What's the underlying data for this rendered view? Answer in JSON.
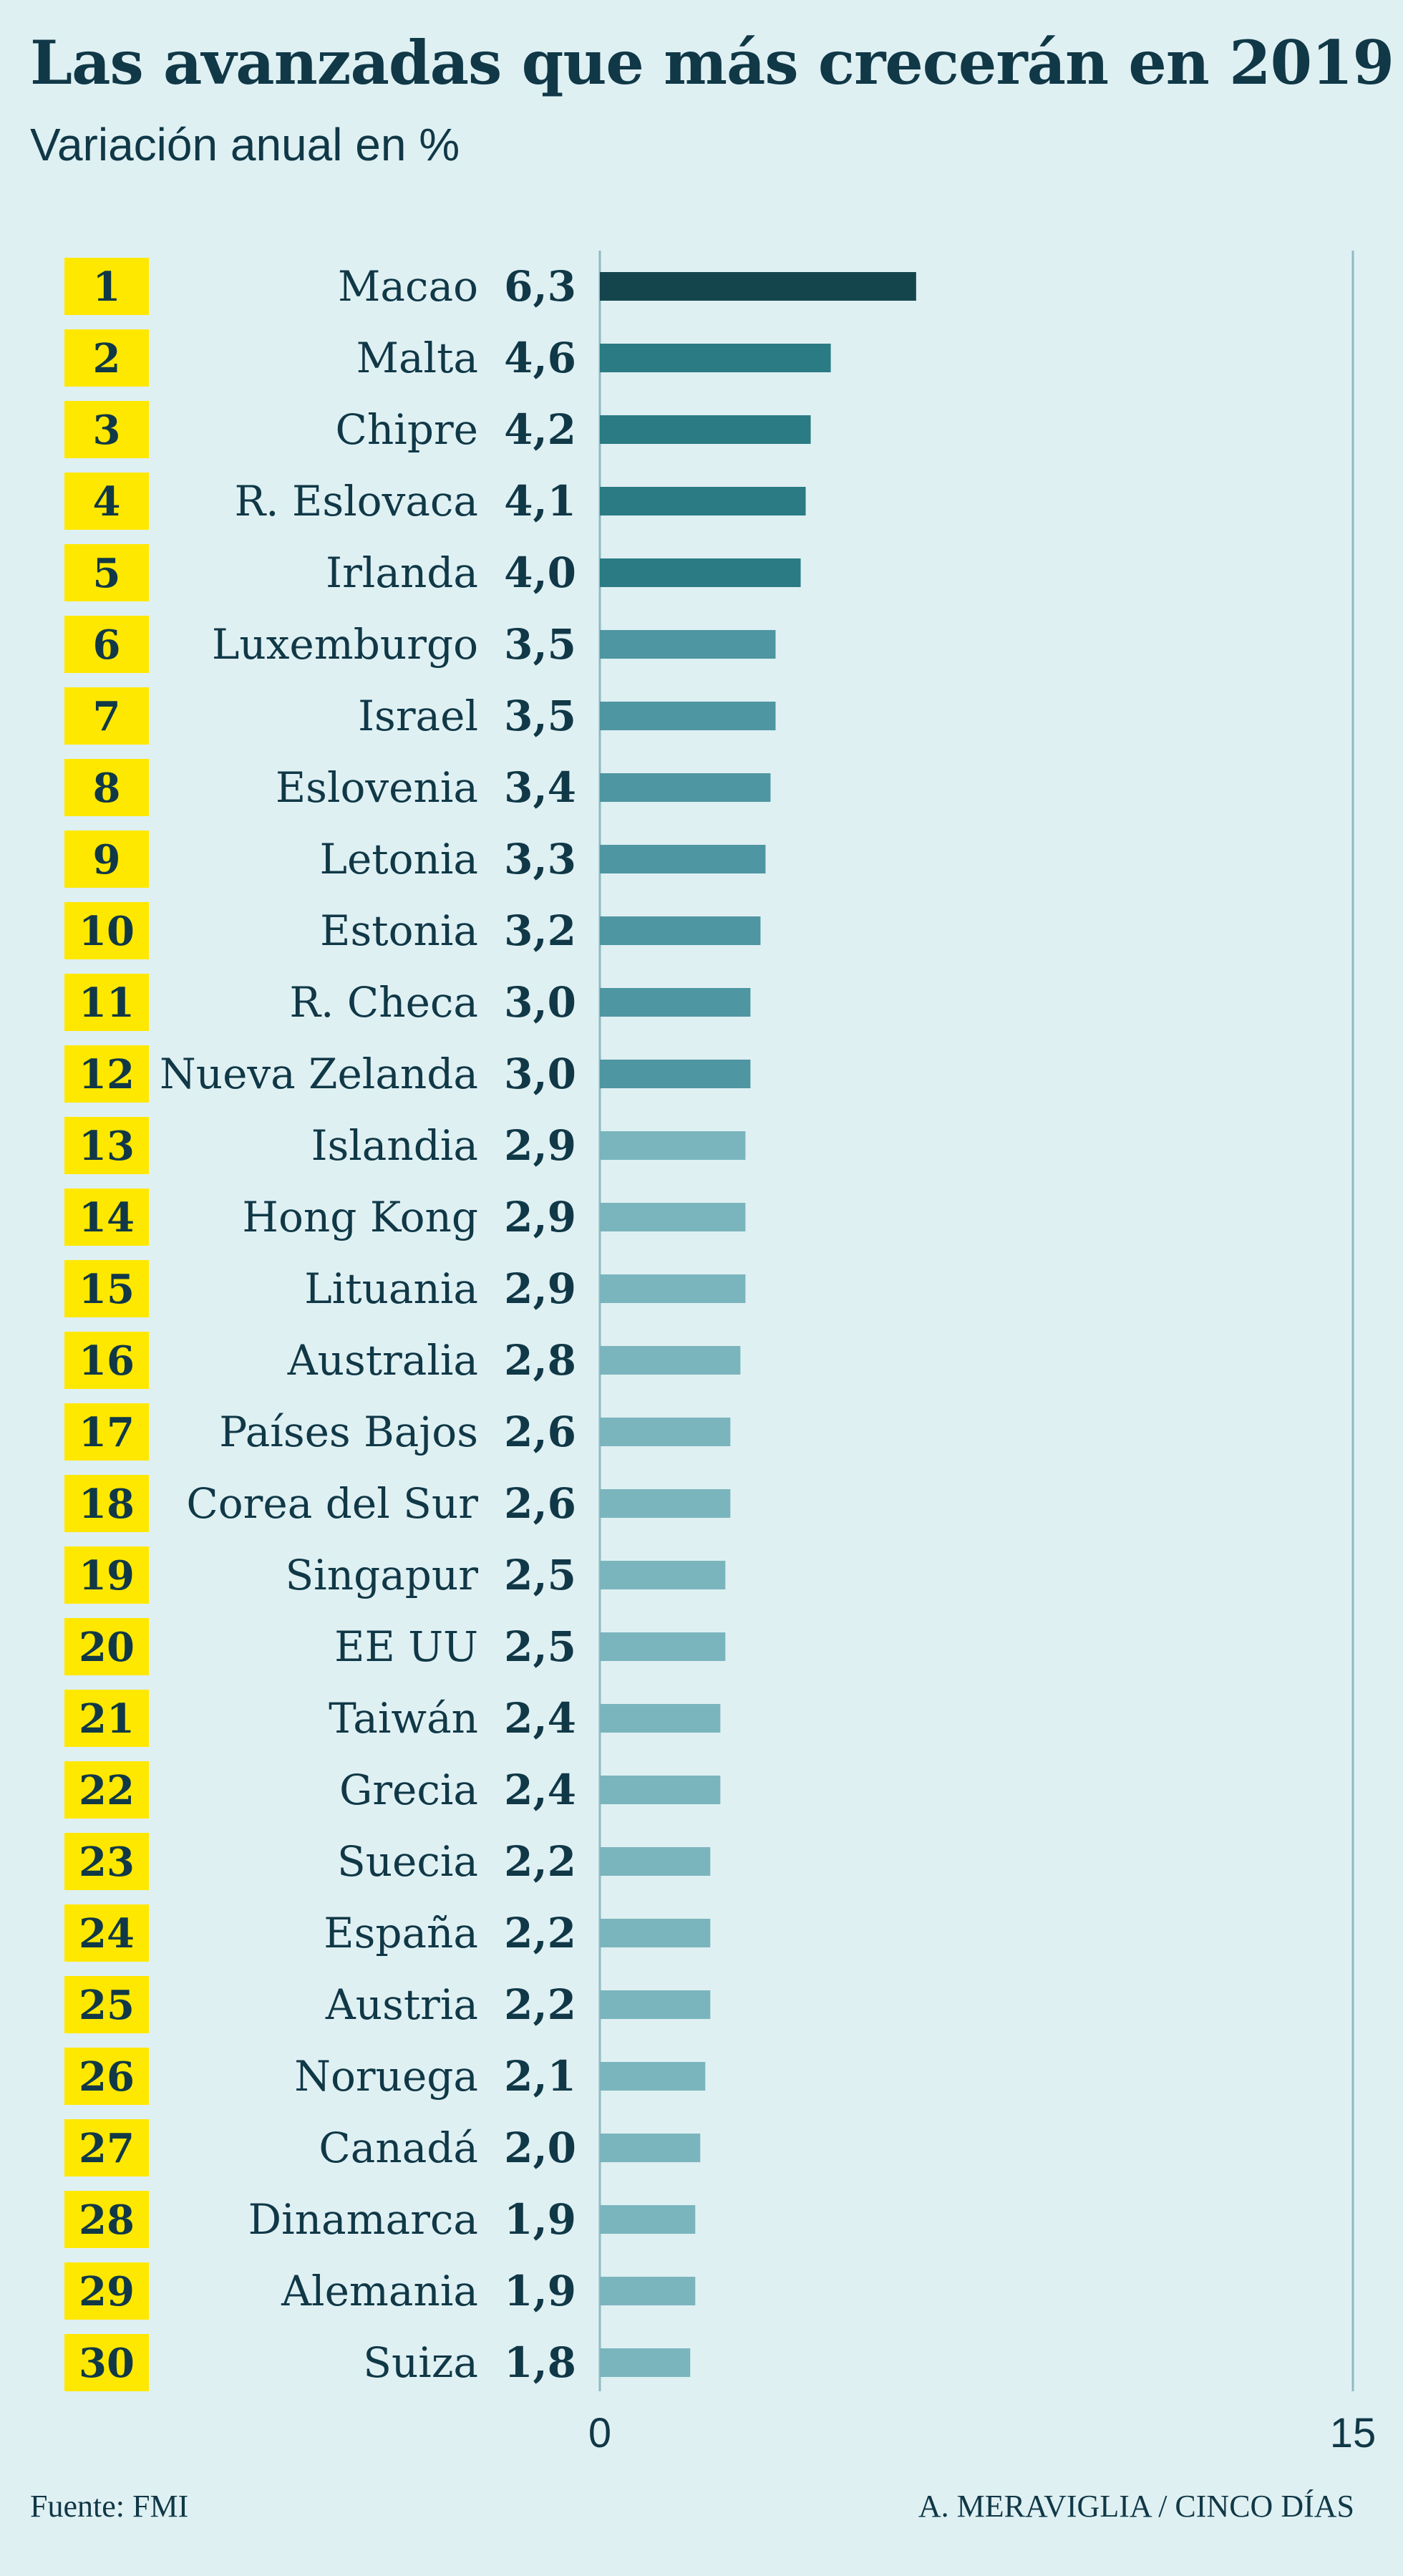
{
  "title": "Las avanzadas que más crecerán en 2019",
  "subtitle": "Variación anual en %",
  "source": "Fuente: FMI",
  "credit": "A. MERAVIGLIA / CINCO DÍAS",
  "colors": {
    "background": "#dff0f3",
    "rank_badge": "#ffe800",
    "text": "#103847",
    "bar_top": "#14454d",
    "bar_dark": "#2a7b83",
    "bar_mid": "#4e96a1",
    "bar_light": "#7ab5bd",
    "axis": "#8fbac3"
  },
  "chart_data": {
    "type": "bar",
    "orientation": "horizontal",
    "title": "Las avanzadas que más crecerán en 2019",
    "subtitle": "Variación anual en %",
    "xlim": [
      0,
      15
    ],
    "x_ticks": [
      "0",
      "15"
    ],
    "ranks": [
      "1",
      "2",
      "3",
      "4",
      "5",
      "6",
      "7",
      "8",
      "9",
      "10",
      "11",
      "12",
      "13",
      "14",
      "15",
      "16",
      "17",
      "18",
      "19",
      "20",
      "21",
      "22",
      "23",
      "24",
      "25",
      "26",
      "27",
      "28",
      "29",
      "30"
    ],
    "categories": [
      "Macao",
      "Malta",
      "Chipre",
      "R. Eslovaca",
      "Irlanda",
      "Luxemburgo",
      "Israel",
      "Eslovenia",
      "Letonia",
      "Estonia",
      "R. Checa",
      "Nueva Zelanda",
      "Islandia",
      "Hong Kong",
      "Lituania",
      "Australia",
      "Países Bajos",
      "Corea del Sur",
      "Singapur",
      "EE UU",
      "Taiwán",
      "Grecia",
      "Suecia",
      "España",
      "Austria",
      "Noruega",
      "Canadá",
      "Dinamarca",
      "Alemania",
      "Suiza"
    ],
    "values": [
      6.3,
      4.6,
      4.2,
      4.1,
      4.0,
      3.5,
      3.5,
      3.4,
      3.3,
      3.2,
      3.0,
      3.0,
      2.9,
      2.9,
      2.9,
      2.8,
      2.6,
      2.6,
      2.5,
      2.5,
      2.4,
      2.4,
      2.2,
      2.2,
      2.2,
      2.1,
      2.0,
      1.9,
      1.9,
      1.8
    ],
    "value_labels": [
      "6,3",
      "4,6",
      "4,2",
      "4,1",
      "4,0",
      "3,5",
      "3,5",
      "3,4",
      "3,3",
      "3,2",
      "3,0",
      "3,0",
      "2,9",
      "2,9",
      "2,9",
      "2,8",
      "2,6",
      "2,6",
      "2,5",
      "2,5",
      "2,4",
      "2,4",
      "2,2",
      "2,2",
      "2,2",
      "2,1",
      "2,0",
      "1,9",
      "1,9",
      "1,8"
    ],
    "grid": false
  }
}
